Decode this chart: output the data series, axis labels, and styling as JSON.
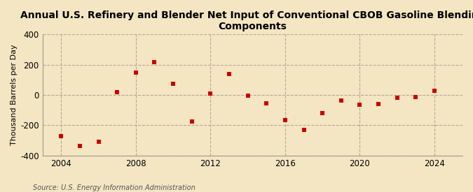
{
  "title": "Annual U.S. Refinery and Blender Net Input of Conventional CBOB Gasoline Blending\nComponents",
  "ylabel": "Thousand Barrels per Day",
  "source": "Source: U.S. Energy Information Administration",
  "background_color": "#f5e6c3",
  "marker_color": "#cc0000",
  "years": [
    2004,
    2005,
    2006,
    2007,
    2008,
    2009,
    2010,
    2011,
    2012,
    2013,
    2014,
    2015,
    2016,
    2017,
    2018,
    2019,
    2020,
    2021,
    2022,
    2023,
    2024
  ],
  "values": [
    -270,
    -335,
    -310,
    20,
    148,
    215,
    75,
    -175,
    10,
    140,
    -5,
    -55,
    -165,
    -230,
    -120,
    -35,
    -65,
    -60,
    -20,
    -15,
    30
  ],
  "ylim": [
    -400,
    400
  ],
  "yticks": [
    -400,
    -200,
    0,
    200,
    400
  ],
  "xlim": [
    2003.0,
    2025.5
  ],
  "xticks": [
    2004,
    2008,
    2012,
    2016,
    2020,
    2024
  ],
  "grid_color": "#b0a898",
  "marker_size": 5
}
